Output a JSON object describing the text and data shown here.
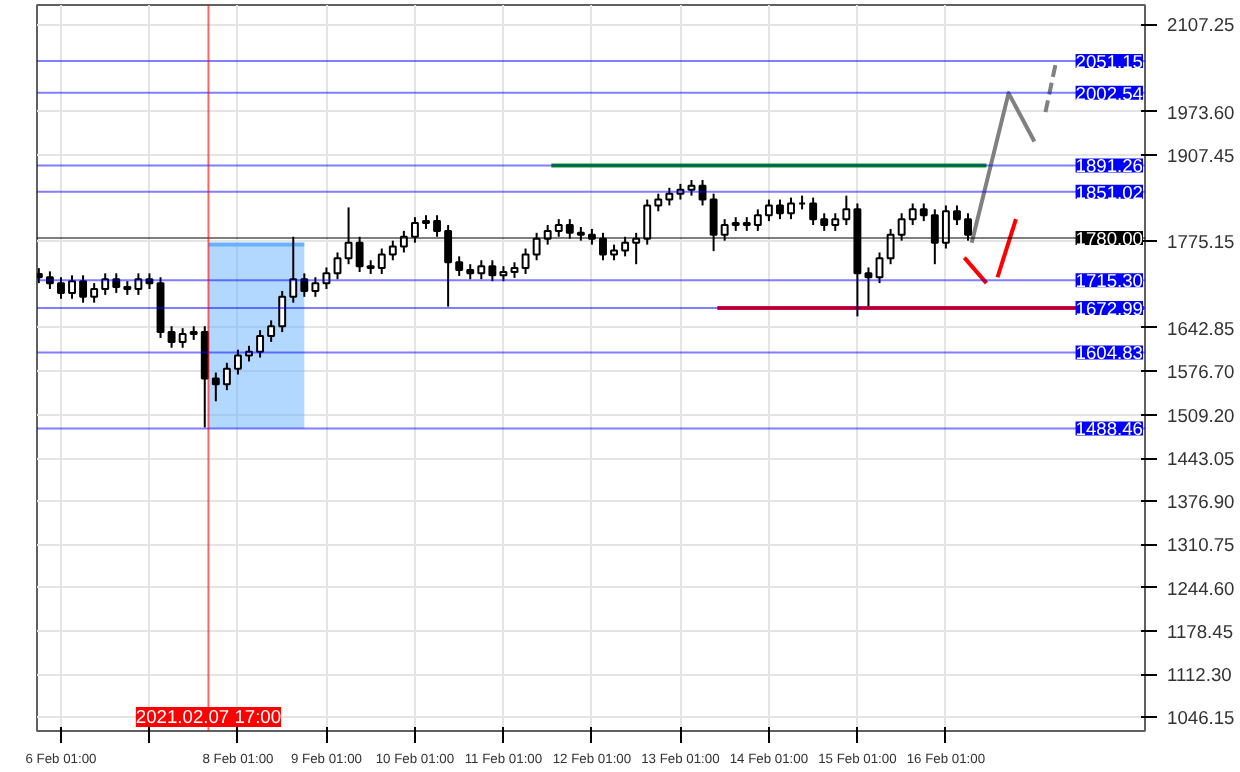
{
  "chart_data": {
    "type": "candlestick",
    "color": "#000000",
    "x": [
      "2021-02-05T19:00",
      "2021-02-05T22:00",
      "2021-02-06T01:00",
      "2021-02-06T04:00",
      "2021-02-06T07:00",
      "2021-02-06T10:00",
      "2021-02-06T13:00",
      "2021-02-06T16:00",
      "2021-02-06T19:00",
      "2021-02-06T22:00",
      "2021-02-07T01:00",
      "2021-02-07T04:00",
      "2021-02-07T07:00",
      "2021-02-07T10:00",
      "2021-02-07T13:00",
      "2021-02-07T16:00",
      "2021-02-07T19:00",
      "2021-02-07T22:00",
      "2021-02-08T01:00",
      "2021-02-08T04:00",
      "2021-02-08T07:00",
      "2021-02-08T10:00",
      "2021-02-08T13:00",
      "2021-02-08T16:00",
      "2021-02-08T19:00",
      "2021-02-08T22:00",
      "2021-02-09T01:00",
      "2021-02-09T04:00",
      "2021-02-09T07:00",
      "2021-02-09T10:00",
      "2021-02-09T13:00",
      "2021-02-09T16:00",
      "2021-02-09T19:00",
      "2021-02-09T22:00",
      "2021-02-10T01:00",
      "2021-02-10T04:00",
      "2021-02-10T07:00",
      "2021-02-10T10:00",
      "2021-02-10T13:00",
      "2021-02-10T16:00",
      "2021-02-10T19:00",
      "2021-02-10T22:00",
      "2021-02-11T01:00",
      "2021-02-11T04:00",
      "2021-02-11T07:00",
      "2021-02-11T10:00",
      "2021-02-11T13:00",
      "2021-02-11T16:00",
      "2021-02-11T19:00",
      "2021-02-11T22:00",
      "2021-02-12T01:00",
      "2021-02-12T04:00",
      "2021-02-12T07:00",
      "2021-02-12T10:00",
      "2021-02-12T13:00",
      "2021-02-12T16:00",
      "2021-02-12T19:00",
      "2021-02-12T22:00",
      "2021-02-13T01:00",
      "2021-02-13T04:00",
      "2021-02-13T07:00",
      "2021-02-13T10:00",
      "2021-02-13T13:00",
      "2021-02-13T16:00",
      "2021-02-13T19:00",
      "2021-02-13T22:00",
      "2021-02-14T01:00",
      "2021-02-14T04:00",
      "2021-02-14T07:00",
      "2021-02-14T10:00",
      "2021-02-14T13:00",
      "2021-02-14T16:00",
      "2021-02-14T19:00",
      "2021-02-14T22:00",
      "2021-02-15T01:00",
      "2021-02-15T04:00",
      "2021-02-15T07:00",
      "2021-02-15T10:00",
      "2021-02-15T13:00",
      "2021-02-15T16:00",
      "2021-02-15T19:00",
      "2021-02-15T22:00",
      "2021-02-16T01:00",
      "2021-02-16T04:00",
      "2021-02-16T07:00"
    ],
    "ohlc": [
      [
        1725,
        1734,
        1711,
        1720
      ],
      [
        1720,
        1729,
        1702,
        1711
      ],
      [
        1711,
        1720,
        1687,
        1696
      ],
      [
        1696,
        1723,
        1687,
        1714
      ],
      [
        1714,
        1723,
        1681,
        1690
      ],
      [
        1690,
        1711,
        1681,
        1702
      ],
      [
        1702,
        1726,
        1693,
        1717
      ],
      [
        1717,
        1726,
        1696,
        1705
      ],
      [
        1705,
        1714,
        1693,
        1702
      ],
      [
        1702,
        1726,
        1693,
        1717
      ],
      [
        1717,
        1726,
        1702,
        1711
      ],
      [
        1711,
        1720,
        1627,
        1636
      ],
      [
        1636,
        1645,
        1612,
        1621
      ],
      [
        1621,
        1642,
        1612,
        1633
      ],
      [
        1633,
        1645,
        1624,
        1636
      ],
      [
        1636,
        1645,
        1490,
        1565
      ],
      [
        1565,
        1574,
        1530,
        1556
      ],
      [
        1556,
        1589,
        1547,
        1580
      ],
      [
        1580,
        1609,
        1571,
        1600
      ],
      [
        1600,
        1615,
        1591,
        1606
      ],
      [
        1606,
        1639,
        1597,
        1630
      ],
      [
        1630,
        1654,
        1621,
        1645
      ],
      [
        1645,
        1699,
        1636,
        1690
      ],
      [
        1690,
        1782,
        1681,
        1717
      ],
      [
        1717,
        1726,
        1690,
        1699
      ],
      [
        1699,
        1720,
        1690,
        1711
      ],
      [
        1711,
        1735,
        1702,
        1726
      ],
      [
        1726,
        1758,
        1717,
        1749
      ],
      [
        1749,
        1827,
        1740,
        1773
      ],
      [
        1773,
        1782,
        1728,
        1737
      ],
      [
        1737,
        1746,
        1725,
        1734
      ],
      [
        1734,
        1764,
        1725,
        1755
      ],
      [
        1755,
        1776,
        1746,
        1767
      ],
      [
        1767,
        1791,
        1758,
        1782
      ],
      [
        1782,
        1812,
        1773,
        1803
      ],
      [
        1803,
        1815,
        1794,
        1806
      ],
      [
        1806,
        1815,
        1782,
        1791
      ],
      [
        1791,
        1800,
        1675,
        1743
      ],
      [
        1743,
        1752,
        1722,
        1731
      ],
      [
        1731,
        1740,
        1717,
        1726
      ],
      [
        1726,
        1746,
        1717,
        1737
      ],
      [
        1737,
        1746,
        1714,
        1723
      ],
      [
        1723,
        1737,
        1714,
        1728
      ],
      [
        1728,
        1743,
        1719,
        1734
      ],
      [
        1734,
        1764,
        1725,
        1755
      ],
      [
        1755,
        1788,
        1746,
        1779
      ],
      [
        1779,
        1800,
        1770,
        1791
      ],
      [
        1791,
        1809,
        1782,
        1800
      ],
      [
        1800,
        1809,
        1779,
        1788
      ],
      [
        1788,
        1797,
        1776,
        1785
      ],
      [
        1785,
        1794,
        1770,
        1779
      ],
      [
        1779,
        1788,
        1746,
        1755
      ],
      [
        1755,
        1770,
        1746,
        1761
      ],
      [
        1761,
        1782,
        1752,
        1773
      ],
      [
        1773,
        1788,
        1740,
        1779
      ],
      [
        1779,
        1839,
        1770,
        1830
      ],
      [
        1830,
        1848,
        1821,
        1839
      ],
      [
        1839,
        1857,
        1830,
        1848
      ],
      [
        1848,
        1863,
        1839,
        1854
      ],
      [
        1854,
        1869,
        1845,
        1860
      ],
      [
        1860,
        1869,
        1830,
        1839
      ],
      [
        1839,
        1848,
        1760,
        1785
      ],
      [
        1785,
        1809,
        1776,
        1800
      ],
      [
        1800,
        1812,
        1791,
        1803
      ],
      [
        1803,
        1812,
        1791,
        1800
      ],
      [
        1800,
        1824,
        1791,
        1815
      ],
      [
        1815,
        1839,
        1806,
        1830
      ],
      [
        1830,
        1839,
        1809,
        1818
      ],
      [
        1818,
        1842,
        1809,
        1833
      ],
      [
        1833,
        1845,
        1824,
        1833
      ],
      [
        1833,
        1842,
        1800,
        1809
      ],
      [
        1809,
        1818,
        1791,
        1800
      ],
      [
        1800,
        1818,
        1791,
        1809
      ],
      [
        1809,
        1845,
        1800,
        1824
      ],
      [
        1824,
        1833,
        1660,
        1726
      ],
      [
        1726,
        1735,
        1675,
        1720
      ],
      [
        1720,
        1758,
        1711,
        1749
      ],
      [
        1749,
        1794,
        1740,
        1785
      ],
      [
        1785,
        1818,
        1776,
        1809
      ],
      [
        1809,
        1833,
        1800,
        1824
      ],
      [
        1824,
        1833,
        1806,
        1815
      ],
      [
        1815,
        1824,
        1740,
        1773
      ],
      [
        1773,
        1830,
        1764,
        1821
      ],
      [
        1821,
        1830,
        1800,
        1809
      ],
      [
        1809,
        1818,
        1776,
        1785
      ]
    ],
    "series": [
      {
        "type": "line",
        "color": "#66b2ff",
        "x": [
          "2021-02-07T17:00",
          "2021-02-08T19:00"
        ],
        "values": [
          1770,
          1770
        ],
        "lower": [
          1488.46,
          1488.46
        ],
        "upper": [
          1770,
          1770
        ]
      },
      {
        "type": "line",
        "color": "#00a000",
        "x": [
          "2021-02-11T14:00",
          "2021-02-16T12:00"
        ],
        "values": [
          1891.26,
          1891.26
        ]
      },
      {
        "type": "line",
        "color": "#ff0000",
        "x": [
          "2021-02-13T11:00",
          "2021-02-18T07:00"
        ],
        "values": [
          1672.99,
          1672.99
        ]
      },
      {
        "type": "line",
        "color": "#808080",
        "line_style": "solid",
        "x": [
          "2021-02-16T08:00",
          "2021-02-16T18:00",
          "2021-02-17T01:00"
        ],
        "values": [
          1773,
          2002,
          1928
        ]
      },
      {
        "type": "line",
        "color": "#808080",
        "line_style": "dashed",
        "x": [
          "2021-02-17T04:00",
          "2021-02-17T07:00"
        ],
        "values": [
          1973,
          2053
        ]
      },
      {
        "type": "line",
        "color": "#ff0000",
        "line_style": "solid",
        "x": [
          "2021-02-16T06:00",
          "2021-02-16T12:00"
        ],
        "values": [
          1750,
          1711
        ]
      },
      {
        "type": "line",
        "color": "#ff0000",
        "line_style": "solid",
        "x": [
          "2021-02-16T15:00",
          "2021-02-16T20:00"
        ],
        "values": [
          1720,
          1809
        ]
      }
    ],
    "xlim": [
      "2021-02-05T18:30",
      "2021-02-18T07:00"
    ],
    "xticks": [
      {
        "value": "2021-02-06T01:00",
        "label": "6 Feb 01:00"
      },
      {
        "value": "2021-02-07T01:00",
        "label": null
      },
      {
        "value": "2021-02-08T01:00",
        "label": "8 Feb 01:00"
      },
      {
        "value": "2021-02-09T01:00",
        "label": "9 Feb 01:00"
      },
      {
        "value": "2021-02-10T01:00",
        "label": "10 Feb 01:00"
      },
      {
        "value": "2021-02-11T01:00",
        "label": "11 Feb 01:00"
      },
      {
        "value": "2021-02-12T01:00",
        "label": "12 Feb 01:00"
      },
      {
        "value": "2021-02-13T01:00",
        "label": "13 Feb 01:00"
      },
      {
        "value": "2021-02-14T01:00",
        "label": "14 Feb 01:00"
      },
      {
        "value": "2021-02-15T01:00",
        "label": "15 Feb 01:00"
      },
      {
        "value": "2021-02-16T01:00",
        "label": "16 Feb 01:00"
      }
    ],
    "ylim": [
      1025,
      2137
    ],
    "yticks": [
      {
        "value": 1046.15,
        "label": "1046.15"
      },
      {
        "value": 1112.3,
        "label": "1112.30"
      },
      {
        "value": 1178.45,
        "label": "1178.45"
      },
      {
        "value": 1244.6,
        "label": "1244.60"
      },
      {
        "value": 1310.75,
        "label": "1310.75"
      },
      {
        "value": 1376.9,
        "label": "1376.90"
      },
      {
        "value": 1443.05,
        "label": "1443.05"
      },
      {
        "value": 1509.2,
        "label": "1509.20"
      },
      {
        "value": 1576.7,
        "label": "1576.70"
      },
      {
        "value": 1642.85,
        "label": "1642.85"
      },
      {
        "value": 1775.15,
        "label": "1775.15"
      },
      {
        "value": 1907.45,
        "label": "1907.45"
      },
      {
        "value": 1973.6,
        "label": "1973.60"
      },
      {
        "value": 2107.25,
        "label": "2107.25"
      }
    ],
    "ref_lines": [
      {
        "axis": "y",
        "value": 2051.15,
        "label": "2051.15",
        "color": "#0000ff"
      },
      {
        "axis": "y",
        "value": 2002.54,
        "label": "2002.54",
        "color": "#0000ff"
      },
      {
        "axis": "y",
        "value": 1891.26,
        "label": "1891.26",
        "color": "#0000ff"
      },
      {
        "axis": "y",
        "value": 1851.02,
        "label": "1851.02",
        "color": "#0000ff"
      },
      {
        "axis": "y",
        "value": 1780.0,
        "label": "1780.00",
        "color": "#000000"
      },
      {
        "axis": "y",
        "value": 1715.3,
        "label": "1715.30",
        "color": "#0000ff"
      },
      {
        "axis": "y",
        "value": 1672.99,
        "label": "1672.99",
        "color": "#0000ff"
      },
      {
        "axis": "y",
        "value": 1604.83,
        "label": "1604.83",
        "color": "#0000ff"
      },
      {
        "axis": "y",
        "value": 1488.46,
        "label": "1488.46",
        "color": "#0000ff"
      },
      {
        "axis": "x",
        "value": "2021-02-07T17:00",
        "label": "2021.02.07 17:00",
        "color": "#ff0000"
      }
    ],
    "grid": true
  }
}
